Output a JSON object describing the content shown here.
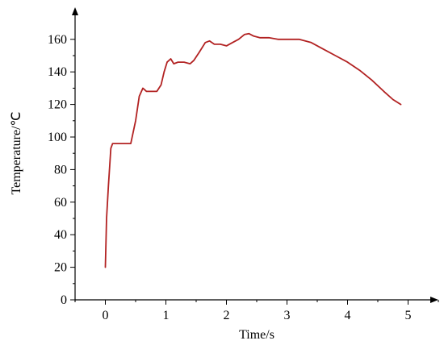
{
  "chart_data": {
    "type": "line",
    "title": "",
    "xlabel": "Time/s",
    "ylabel": "Temperature/℃",
    "xlim": [
      -0.5,
      5.5
    ],
    "ylim": [
      0,
      175
    ],
    "xticks": [
      0,
      1,
      2,
      3,
      4,
      5
    ],
    "yticks": [
      0,
      20,
      40,
      60,
      80,
      100,
      120,
      140,
      160
    ],
    "xtick_labels": [
      "0",
      "1",
      "2",
      "3",
      "4",
      "5"
    ],
    "ytick_labels": [
      "0",
      "20",
      "40",
      "60",
      "80",
      "100",
      "120",
      "140",
      "160"
    ],
    "grid": false,
    "legend": "none",
    "series": [
      {
        "color": "#b22222",
        "x": [
          0,
          0.02,
          0.05,
          0.09,
          0.12,
          0.16,
          0.25,
          0.35,
          0.42,
          0.46,
          0.5,
          0.56,
          0.62,
          0.68,
          0.74,
          0.85,
          0.92,
          0.97,
          1.02,
          1.08,
          1.13,
          1.2,
          1.3,
          1.4,
          1.46,
          1.55,
          1.65,
          1.72,
          1.8,
          1.9,
          2.0,
          2.1,
          2.2,
          2.3,
          2.37,
          2.45,
          2.55,
          2.7,
          2.85,
          3.0,
          3.2,
          3.4,
          3.6,
          3.8,
          4.0,
          4.2,
          4.4,
          4.6,
          4.75,
          4.88
        ],
        "y": [
          20,
          50,
          70,
          93,
          96,
          96,
          96,
          96,
          96,
          103,
          110,
          125,
          130,
          128,
          128,
          128,
          132,
          140,
          146,
          148,
          145,
          146,
          146,
          145,
          147,
          152,
          158,
          159,
          157,
          157,
          156,
          158,
          160,
          163,
          163.5,
          162,
          161,
          161,
          160,
          160,
          160,
          158,
          154,
          150,
          146,
          141,
          135,
          128,
          123,
          120
        ]
      }
    ]
  }
}
